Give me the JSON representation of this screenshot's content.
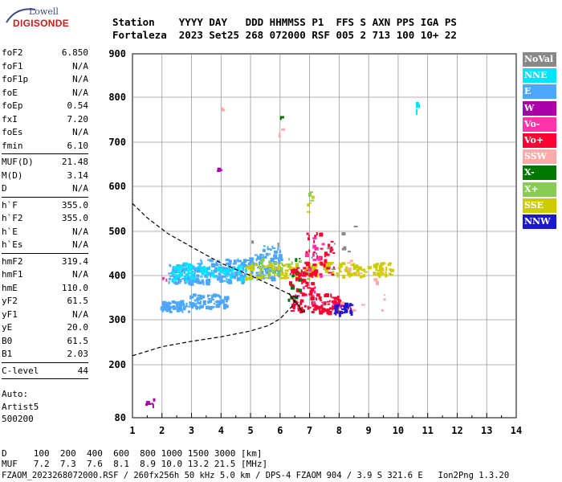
{
  "logo": {
    "top": "Lowell",
    "bottom": "DIGISONDE"
  },
  "header": {
    "line1": "Station    YYYY DAY   DDD HHMMSS P1  FFS S AXN PPS IGA PS",
    "line2": "Fortaleza  2023 Set25 268 072000 RSF 005 2 713 100 10+ 22"
  },
  "params": {
    "g1": [
      [
        "foF2",
        "6.850"
      ],
      [
        "foF1",
        "N/A"
      ],
      [
        "foF1p",
        "N/A"
      ],
      [
        "foE",
        "N/A"
      ],
      [
        "foEp",
        "0.54"
      ],
      [
        "fxI",
        "7.20"
      ],
      [
        "foEs",
        "N/A"
      ],
      [
        "fmin",
        "6.10"
      ]
    ],
    "g2": [
      [
        "MUF(D)",
        "21.48"
      ],
      [
        "M(D)",
        "3.14"
      ],
      [
        "D",
        "N/A"
      ]
    ],
    "g3": [
      [
        "h`F",
        "355.0"
      ],
      [
        "h`F2",
        "355.0"
      ],
      [
        "h`E",
        "N/A"
      ],
      [
        "h`Es",
        "N/A"
      ]
    ],
    "g4": [
      [
        "hmF2",
        "319.4"
      ],
      [
        "hmF1",
        "N/A"
      ],
      [
        "hmE",
        "110.0"
      ],
      [
        "yF2",
        "61.5"
      ],
      [
        "yF1",
        "N/A"
      ],
      [
        "yE",
        "20.0"
      ],
      [
        "B0",
        "61.5"
      ],
      [
        "B1",
        "2.03"
      ]
    ],
    "g5": [
      [
        "C-level",
        "44"
      ]
    ]
  },
  "auto": {
    "l1": "Auto:",
    "l2": "Artist5",
    "l3": "500200"
  },
  "legend": [
    {
      "label": "NoVal",
      "color": "#888888"
    },
    {
      "label": "NNE",
      "color": "#00e5ff"
    },
    {
      "label": "E",
      "color": "#4da6ff"
    },
    {
      "label": "W",
      "color": "#aa00aa"
    },
    {
      "label": "Vo-",
      "color": "#ff33aa"
    },
    {
      "label": "Vo+",
      "color": "#ff0033"
    },
    {
      "label": "SSW",
      "color": "#ffaaaa"
    },
    {
      "label": "X-",
      "color": "#007700"
    },
    {
      "label": "X+",
      "color": "#88cc55"
    },
    {
      "label": "SSE",
      "color": "#cccc00"
    },
    {
      "label": "NNW",
      "color": "#1a1acc"
    }
  ],
  "footer": {
    "line1": "D     100  200  400  600  800 1000 1500 3000 [km]",
    "line2": "MUF   7.2  7.3  7.6  8.1  8.9 10.0 13.2 21.5 [MHz]",
    "line3": "FZAOM_2023268072000.RSF / 260fx256h 50 kHz 5.0 km / DPS-4 FZAOM 904 / 3.9 S 321.6 E   Ion2Png 1.3.20"
  },
  "chart_data": {
    "type": "scatter",
    "xlim": [
      1,
      14
    ],
    "ylim": [
      80,
      900
    ],
    "xticks": [
      1,
      2,
      3,
      4,
      5,
      6,
      7,
      8,
      9,
      10,
      11,
      12,
      13,
      14
    ],
    "yticks": [
      80,
      200,
      300,
      400,
      500,
      600,
      700,
      800,
      900
    ],
    "xlabel": "",
    "ylabel": "",
    "title": "",
    "grid": true,
    "series": [
      {
        "color_key": "E",
        "clusters": [
          {
            "x": [
              1.9,
              2.9
            ],
            "y": [
              320,
              345
            ],
            "n": 60
          },
          {
            "x": [
              2.9,
              4.2
            ],
            "y": [
              330,
              360
            ],
            "n": 70
          },
          {
            "x": [
              2.2,
              3.2
            ],
            "y": [
              385,
              430
            ],
            "n": 80
          },
          {
            "x": [
              3.2,
              4.8
            ],
            "y": [
              385,
              440
            ],
            "n": 120
          },
          {
            "x": [
              4.8,
              6.0
            ],
            "y": [
              395,
              450
            ],
            "n": 90
          },
          {
            "x": [
              5.2,
              6.0
            ],
            "y": [
              440,
              470
            ],
            "n": 20
          }
        ]
      },
      {
        "color_key": "NNE",
        "clusters": [
          {
            "x": [
              2.3,
              3.3
            ],
            "y": [
              390,
              430
            ],
            "n": 40
          },
          {
            "x": [
              3.2,
              5.0
            ],
            "y": [
              395,
              425
            ],
            "n": 50
          },
          {
            "x": [
              10.6,
              10.6
            ],
            "y": [
              768,
              790
            ],
            "n": 4
          }
        ]
      },
      {
        "color_key": "SSE",
        "clusters": [
          {
            "x": [
              4.8,
              6.6
            ],
            "y": [
              395,
              430
            ],
            "n": 60
          },
          {
            "x": [
              6.8,
              9.8
            ],
            "y": [
              398,
              432
            ],
            "n": 110
          },
          {
            "x": [
              6.9,
              7.1
            ],
            "y": [
              540,
              590
            ],
            "n": 5
          }
        ]
      },
      {
        "color_key": "X+",
        "clusters": [
          {
            "x": [
              5.0,
              7.0
            ],
            "y": [
              395,
              440
            ],
            "n": 30
          },
          {
            "x": [
              6.9,
              7.1
            ],
            "y": [
              570,
              590
            ],
            "n": 3
          }
        ]
      },
      {
        "color_key": "Vo+",
        "clusters": [
          {
            "x": [
              6.3,
              7.2
            ],
            "y": [
              320,
              420
            ],
            "n": 90
          },
          {
            "x": [
              7.0,
              8.0
            ],
            "y": [
              318,
              360
            ],
            "n": 60
          },
          {
            "x": [
              6.8,
              7.8
            ],
            "y": [
              400,
              500
            ],
            "n": 40
          }
        ]
      },
      {
        "color_key": "W",
        "clusters": [
          {
            "x": [
              1.4,
              1.7
            ],
            "y": [
              110,
              125
            ],
            "n": 6
          },
          {
            "x": [
              3.8,
              4.0
            ],
            "y": [
              635,
              645
            ],
            "n": 4
          },
          {
            "x": [
              7.8,
              8.4
            ],
            "y": [
              320,
              340
            ],
            "n": 15
          }
        ]
      },
      {
        "color_key": "NNW",
        "clusters": [
          {
            "x": [
              7.8,
              8.4
            ],
            "y": [
              315,
              340
            ],
            "n": 25
          }
        ]
      },
      {
        "color_key": "Vo-",
        "clusters": [
          {
            "x": [
              6.5,
              7.5
            ],
            "y": [
              330,
              500
            ],
            "n": 20
          },
          {
            "x": [
              2.0,
              2.2
            ],
            "y": [
              390,
              400
            ],
            "n": 3
          }
        ]
      },
      {
        "color_key": "SSW",
        "clusters": [
          {
            "x": [
              4.0,
              4.0
            ],
            "y": [
              770,
              780
            ],
            "n": 3
          },
          {
            "x": [
              5.9,
              6.1
            ],
            "y": [
              710,
              735
            ],
            "n": 3
          },
          {
            "x": [
              8.0,
              9.8
            ],
            "y": [
              320,
              440
            ],
            "n": 15
          }
        ]
      },
      {
        "color_key": "X-",
        "clusters": [
          {
            "x": [
              6.2,
              6.8
            ],
            "y": [
              330,
              440
            ],
            "n": 12
          },
          {
            "x": [
              6.0,
              6.0
            ],
            "y": [
              755,
              762
            ],
            "n": 2
          }
        ]
      },
      {
        "color_key": "NoVal",
        "clusters": [
          {
            "x": [
              5.0,
              8.5
            ],
            "y": [
              400,
              520
            ],
            "n": 12
          }
        ]
      }
    ],
    "profile_curve": [
      {
        "x": 1.0,
        "y": 220
      },
      {
        "x": 2.0,
        "y": 240
      },
      {
        "x": 3.0,
        "y": 252
      },
      {
        "x": 4.0,
        "y": 262
      },
      {
        "x": 5.0,
        "y": 275
      },
      {
        "x": 5.6,
        "y": 287
      },
      {
        "x": 6.0,
        "y": 302
      },
      {
        "x": 6.4,
        "y": 330
      },
      {
        "x": 6.6,
        "y": 355
      }
    ],
    "trace_curve": [
      {
        "x": 1.0,
        "y": 562
      },
      {
        "x": 1.5,
        "y": 530
      },
      {
        "x": 2.2,
        "y": 495
      },
      {
        "x": 3.0,
        "y": 465
      },
      {
        "x": 4.0,
        "y": 428
      },
      {
        "x": 5.0,
        "y": 400
      },
      {
        "x": 5.8,
        "y": 375
      },
      {
        "x": 6.3,
        "y": 358
      },
      {
        "x": 6.6,
        "y": 350
      }
    ],
    "solid_curve": [
      {
        "x": 6.3,
        "y": 360
      },
      {
        "x": 6.45,
        "y": 345
      },
      {
        "x": 6.6,
        "y": 335
      },
      {
        "x": 6.75,
        "y": 318
      },
      {
        "x": 6.85,
        "y": 320
      }
    ]
  }
}
